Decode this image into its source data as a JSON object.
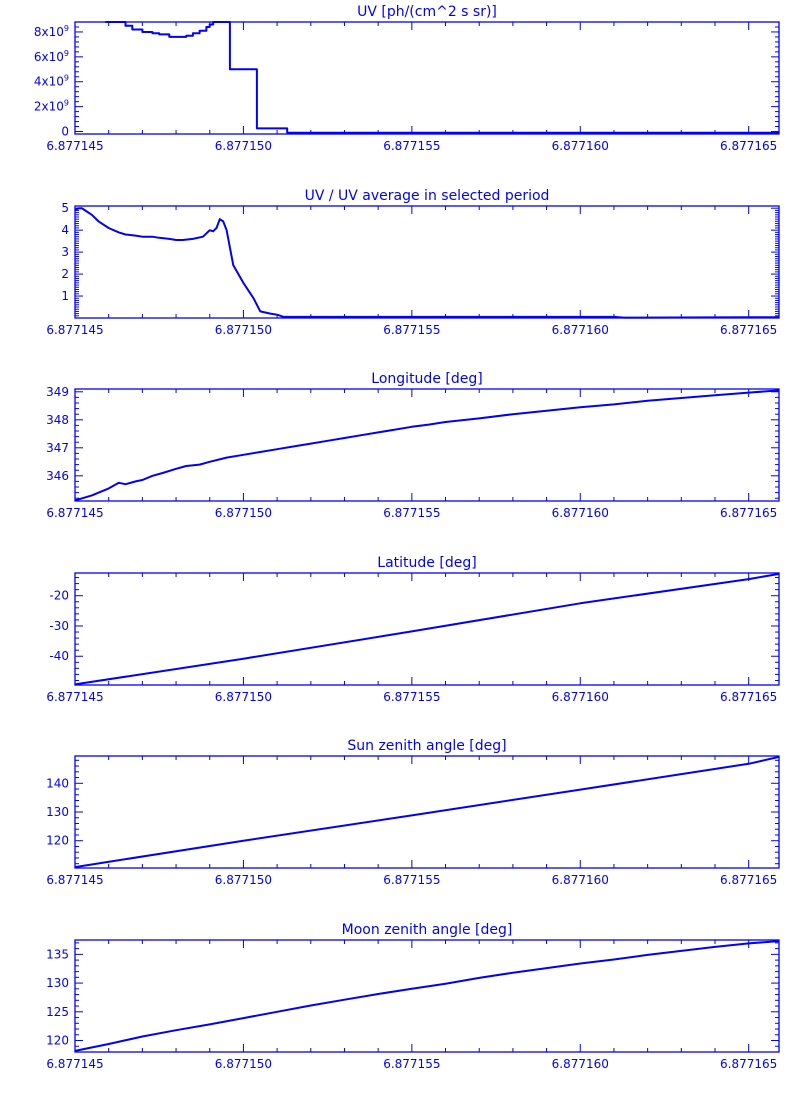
{
  "colors": {
    "line": "#0000ff",
    "background": "#ffffff"
  },
  "chart_data": [
    {
      "type": "line",
      "title": "UV [ph/(cm^2 s sr)]",
      "step": true,
      "xlim": [
        6.877145,
        6.8771659
      ],
      "ylim": [
        -200000000.0,
        8800000000.0
      ],
      "x_ticks": [
        {
          "value": 6.877145,
          "label": "6.877145"
        },
        {
          "value": 6.87715,
          "label": "6.877150"
        },
        {
          "value": 6.877155,
          "label": "6.877155"
        },
        {
          "value": 6.87716,
          "label": "6.877160"
        },
        {
          "value": 6.877165,
          "label": "6.877165"
        }
      ],
      "y_ticks": [
        {
          "value": 0,
          "label": "0"
        },
        {
          "value": 2000000000.0,
          "label": "2x10",
          "exp": "9"
        },
        {
          "value": 4000000000.0,
          "label": "4x10",
          "exp": "9"
        },
        {
          "value": 6000000000.0,
          "label": "6x10",
          "exp": "9"
        },
        {
          "value": 8000000000.0,
          "label": "8x10",
          "exp": "9"
        }
      ],
      "y_minor": 5,
      "x": [
        6.8771459,
        6.877146,
        6.8771463,
        6.8771465,
        6.8771467,
        6.877147,
        6.8771473,
        6.8771475,
        6.8771478,
        6.877148,
        6.8771483,
        6.8771485,
        6.8771487,
        6.8771489,
        6.877149,
        6.8771491,
        6.8771492,
        6.8771494,
        6.8771496,
        6.87715,
        6.8771504,
        6.877151,
        6.8771513,
        6.877152,
        6.877153,
        6.877155,
        6.877158,
        6.877161,
        6.877165,
        6.8771659
      ],
      "y": [
        8800000000.0,
        8800000000.0,
        8800000000.0,
        8500000000.0,
        8200000000.0,
        8000000000.0,
        7900000000.0,
        7800000000.0,
        7600000000.0,
        7600000000.0,
        7700000000.0,
        7900000000.0,
        8100000000.0,
        8400000000.0,
        8600000000.0,
        8800000000.0,
        8800000000.0,
        8800000000.0,
        5000000000.0,
        5000000000.0,
        250000000.0,
        250000000.0,
        -100000000.0,
        -100000000.0,
        -100000000.0,
        -100000000.0,
        -100000000.0,
        -100000000.0,
        -100000000.0,
        -100000000.0
      ]
    },
    {
      "type": "line",
      "title": "UV / UV average in selected period",
      "xlim": [
        6.877145,
        6.8771659
      ],
      "ylim": [
        0,
        5.1
      ],
      "x_ticks": [
        {
          "value": 6.877145,
          "label": "6.877145"
        },
        {
          "value": 6.87715,
          "label": "6.877150"
        },
        {
          "value": 6.877155,
          "label": "6.877155"
        },
        {
          "value": 6.87716,
          "label": "6.877160"
        },
        {
          "value": 6.877165,
          "label": "6.877165"
        }
      ],
      "y_ticks": [
        {
          "value": 1,
          "label": "1"
        },
        {
          "value": 2,
          "label": "2"
        },
        {
          "value": 3,
          "label": "3"
        },
        {
          "value": 4,
          "label": "4"
        },
        {
          "value": 5,
          "label": "5"
        }
      ],
      "y_minor": 10,
      "x": [
        6.877145,
        6.8771451,
        6.8771452,
        6.8771453,
        6.8771455,
        6.8771457,
        6.877146,
        6.8771463,
        6.8771465,
        6.8771468,
        6.877147,
        6.8771473,
        6.8771475,
        6.8771478,
        6.877148,
        6.8771482,
        6.8771485,
        6.8771488,
        6.877149,
        6.8771491,
        6.8771492,
        6.8771493,
        6.8771494,
        6.8771495,
        6.8771497,
        6.87715,
        6.8771503,
        6.8771505,
        6.8771508,
        6.877151,
        6.8771512,
        6.877152,
        6.877155,
        6.877158,
        6.877161,
        6.8771613,
        6.877165,
        6.8771659
      ],
      "y": [
        4.9,
        5.0,
        5.0,
        4.9,
        4.7,
        4.4,
        4.1,
        3.9,
        3.8,
        3.75,
        3.7,
        3.7,
        3.65,
        3.6,
        3.55,
        3.55,
        3.6,
        3.7,
        4.0,
        3.95,
        4.1,
        4.5,
        4.4,
        4.0,
        2.4,
        1.6,
        0.9,
        0.3,
        0.2,
        0.15,
        0.05,
        0.05,
        0.05,
        0.05,
        0.05,
        0.02,
        0.03,
        0.03
      ]
    },
    {
      "type": "line",
      "title": "Longitude [deg]",
      "xlim": [
        6.877145,
        6.8771659
      ],
      "ylim": [
        345.1,
        349.1
      ],
      "x_ticks": [
        {
          "value": 6.877145,
          "label": "6.877145"
        },
        {
          "value": 6.87715,
          "label": "6.877150"
        },
        {
          "value": 6.877155,
          "label": "6.877155"
        },
        {
          "value": 6.87716,
          "label": "6.877160"
        },
        {
          "value": 6.877165,
          "label": "6.877165"
        }
      ],
      "y_ticks": [
        {
          "value": 346,
          "label": "346"
        },
        {
          "value": 347,
          "label": "347"
        },
        {
          "value": 348,
          "label": "348"
        },
        {
          "value": 349,
          "label": "349"
        }
      ],
      "y_minor": 5,
      "x": [
        6.877145,
        6.8771455,
        6.877146,
        6.8771463,
        6.8771465,
        6.8771468,
        6.877147,
        6.8771473,
        6.8771476,
        6.877148,
        6.8771483,
        6.8771487,
        6.877149,
        6.8771495,
        6.87715,
        6.8771505,
        6.877151,
        6.8771515,
        6.877152,
        6.8771525,
        6.877153,
        6.8771535,
        6.877154,
        6.8771545,
        6.877155,
        6.8771555,
        6.877156,
        6.877157,
        6.877158,
        6.877159,
        6.87716,
        6.877161,
        6.877162,
        6.877163,
        6.877164,
        6.877165,
        6.8771659
      ],
      "y": [
        345.12,
        345.3,
        345.55,
        345.75,
        345.7,
        345.8,
        345.85,
        346.0,
        346.1,
        346.25,
        346.35,
        346.4,
        346.5,
        346.65,
        346.75,
        346.85,
        346.95,
        347.05,
        347.15,
        347.25,
        347.35,
        347.45,
        347.55,
        347.65,
        347.75,
        347.83,
        347.92,
        348.05,
        348.2,
        348.32,
        348.45,
        348.55,
        348.68,
        348.78,
        348.88,
        348.97,
        349.05
      ]
    },
    {
      "type": "line",
      "title": "Latitude [deg]",
      "xlim": [
        6.877145,
        6.8771659
      ],
      "ylim": [
        -49.5,
        -12.5
      ],
      "x_ticks": [
        {
          "value": 6.877145,
          "label": "6.877145"
        },
        {
          "value": 6.87715,
          "label": "6.877150"
        },
        {
          "value": 6.877155,
          "label": "6.877155"
        },
        {
          "value": 6.87716,
          "label": "6.877160"
        },
        {
          "value": 6.877165,
          "label": "6.877165"
        }
      ],
      "y_ticks": [
        {
          "value": -40,
          "label": "-40"
        },
        {
          "value": -30,
          "label": "-30"
        },
        {
          "value": -20,
          "label": "-20"
        }
      ],
      "y_minor": 5,
      "x": [
        6.877145,
        6.87715,
        6.877155,
        6.87716,
        6.877165,
        6.8771659
      ],
      "y": [
        -49.3,
        -40.8,
        -31.8,
        -22.5,
        -14.5,
        -12.8
      ]
    },
    {
      "type": "line",
      "title": "Sun zenith angle [deg]",
      "xlim": [
        6.877145,
        6.8771659
      ],
      "ylim": [
        110.5,
        149.5
      ],
      "x_ticks": [
        {
          "value": 6.877145,
          "label": "6.877145"
        },
        {
          "value": 6.87715,
          "label": "6.877150"
        },
        {
          "value": 6.877155,
          "label": "6.877155"
        },
        {
          "value": 6.87716,
          "label": "6.877160"
        },
        {
          "value": 6.877165,
          "label": "6.877165"
        }
      ],
      "y_ticks": [
        {
          "value": 120,
          "label": "120"
        },
        {
          "value": 130,
          "label": "130"
        },
        {
          "value": 140,
          "label": "140"
        }
      ],
      "y_minor": 5,
      "x": [
        6.877145,
        6.87715,
        6.877155,
        6.87716,
        6.877165,
        6.8771659
      ],
      "y": [
        110.8,
        120.0,
        128.8,
        137.8,
        146.8,
        149.2
      ]
    },
    {
      "type": "line",
      "title": "Moon zenith angle [deg]",
      "xlim": [
        6.877145,
        6.8771659
      ],
      "ylim": [
        118,
        137.5
      ],
      "x_ticks": [
        {
          "value": 6.877145,
          "label": "6.877145"
        },
        {
          "value": 6.87715,
          "label": "6.877150"
        },
        {
          "value": 6.877155,
          "label": "6.877155"
        },
        {
          "value": 6.87716,
          "label": "6.877160"
        },
        {
          "value": 6.877165,
          "label": "6.877165"
        }
      ],
      "y_ticks": [
        {
          "value": 120,
          "label": "120"
        },
        {
          "value": 125,
          "label": "125"
        },
        {
          "value": 130,
          "label": "130"
        },
        {
          "value": 135,
          "label": "135"
        }
      ],
      "y_minor": 5,
      "x": [
        6.877145,
        6.877146,
        6.877147,
        6.877148,
        6.877149,
        6.87715,
        6.877151,
        6.877152,
        6.877153,
        6.877154,
        6.877155,
        6.877156,
        6.877157,
        6.877158,
        6.877159,
        6.87716,
        6.877161,
        6.877162,
        6.877163,
        6.877164,
        6.877165,
        6.8771659
      ],
      "y": [
        118.2,
        119.4,
        120.7,
        121.8,
        122.8,
        123.9,
        125.0,
        126.1,
        127.1,
        128.1,
        129.0,
        129.9,
        130.9,
        131.8,
        132.6,
        133.4,
        134.1,
        134.9,
        135.6,
        136.3,
        136.9,
        137.3
      ]
    }
  ]
}
